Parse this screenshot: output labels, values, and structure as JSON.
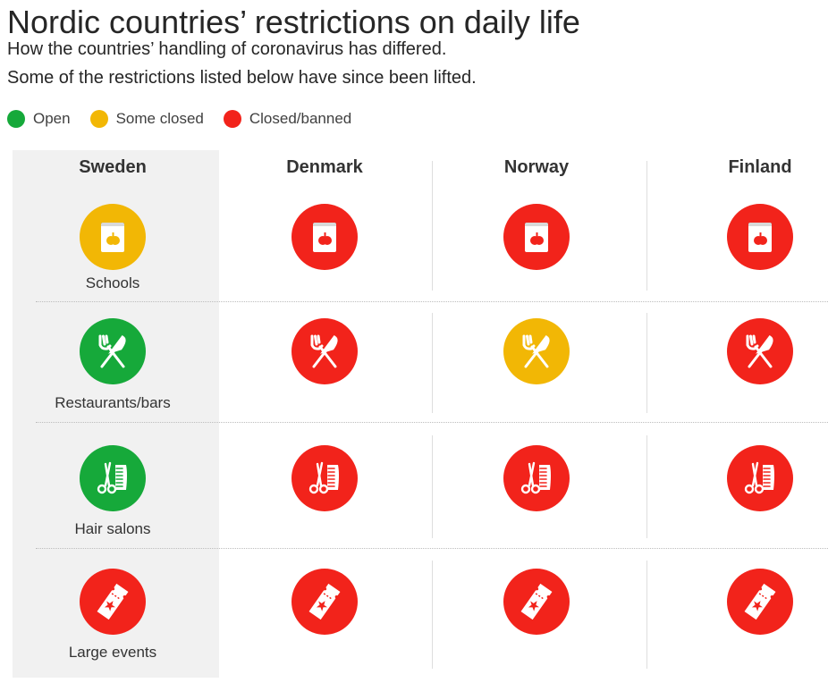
{
  "title": "Nordic countries’ restrictions on daily life",
  "subtitle_line1": "How the countries’ handling of coronavirus has differed.",
  "subtitle_line2": "Some of the restrictions listed below have since been lifted.",
  "legend": [
    {
      "label": "Open",
      "color": "#16a93a"
    },
    {
      "label": "Some closed",
      "color": "#f2b705"
    },
    {
      "label": "Closed/banned",
      "color": "#f2231b"
    }
  ],
  "colors": {
    "open": "#16a93a",
    "some": "#f2b705",
    "closed": "#f2231b"
  },
  "countries": [
    "Sweden",
    "Denmark",
    "Norway",
    "Finland"
  ],
  "categories": [
    {
      "label": "Schools",
      "icon": "book-apple-icon",
      "status": [
        "some",
        "closed",
        "closed",
        "closed"
      ]
    },
    {
      "label": "Restaurants/bars",
      "icon": "fork-knife-icon",
      "status": [
        "open",
        "closed",
        "some",
        "closed"
      ]
    },
    {
      "label": "Hair salons",
      "icon": "scissors-comb-icon",
      "status": [
        "open",
        "closed",
        "closed",
        "closed"
      ]
    },
    {
      "label": "Large events",
      "icon": "ticket-icon",
      "status": [
        "closed",
        "closed",
        "closed",
        "closed"
      ]
    }
  ]
}
